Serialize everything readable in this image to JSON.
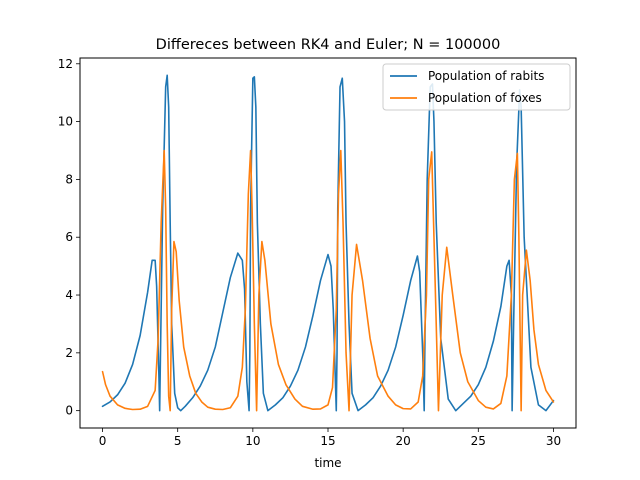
{
  "chart_data": {
    "type": "line",
    "title": "Differeces between RK4 and Euler; N = 100000",
    "xlabel": "time",
    "ylabel": "",
    "xlim": [
      -1.5,
      31.5
    ],
    "ylim": [
      -0.6,
      12.2
    ],
    "xticks": [
      0,
      5,
      10,
      15,
      20,
      25,
      30
    ],
    "yticks": [
      0,
      2,
      4,
      6,
      8,
      10,
      12
    ],
    "legend_position": "top-right",
    "series": [
      {
        "name": "Population of rabits",
        "color": "#1f77b4",
        "x": [
          0.0,
          0.5,
          1.0,
          1.5,
          2.0,
          2.5,
          3.0,
          3.3,
          3.5,
          3.6,
          3.75,
          3.8,
          3.85,
          4.0,
          4.2,
          4.3,
          4.4,
          4.5,
          4.6,
          4.8,
          5.0,
          5.2,
          5.5,
          6.0,
          6.5,
          7.0,
          7.5,
          8.0,
          8.5,
          9.0,
          9.3,
          9.45,
          9.6,
          9.75,
          9.8,
          9.85,
          10.0,
          10.1,
          10.2,
          10.3,
          10.5,
          10.7,
          11.0,
          11.5,
          12.0,
          12.5,
          13.0,
          13.5,
          14.0,
          14.5,
          15.0,
          15.2,
          15.35,
          15.55,
          15.6,
          15.65,
          15.8,
          15.95,
          16.1,
          16.2,
          16.4,
          16.6,
          17.0,
          17.5,
          18.0,
          18.5,
          19.0,
          19.5,
          20.0,
          20.5,
          20.95,
          21.1,
          21.3,
          21.4,
          21.45,
          21.6,
          21.8,
          21.95,
          22.05,
          22.2,
          22.5,
          23.0,
          23.5,
          24.0,
          24.5,
          25.0,
          25.5,
          26.0,
          26.5,
          26.9,
          27.05,
          27.2,
          27.25,
          27.35,
          27.55,
          27.75,
          27.85,
          28.05,
          28.5,
          29.0,
          29.5,
          30.0
        ],
        "y": [
          0.15,
          0.3,
          0.55,
          0.95,
          1.6,
          2.6,
          4.1,
          5.2,
          5.2,
          4.3,
          1.2,
          0.0,
          1.8,
          7.0,
          11.2,
          11.6,
          10.5,
          6.5,
          3.0,
          0.6,
          0.1,
          0.0,
          0.15,
          0.45,
          0.85,
          1.4,
          2.2,
          3.4,
          4.6,
          5.45,
          5.2,
          4.2,
          1.0,
          0.0,
          2.0,
          7.0,
          11.5,
          11.55,
          10.5,
          6.5,
          3.0,
          0.6,
          0.0,
          0.2,
          0.45,
          0.85,
          1.4,
          2.2,
          3.3,
          4.5,
          5.4,
          5.0,
          3.5,
          0.0,
          2.0,
          7.0,
          11.2,
          11.5,
          10.0,
          6.5,
          3.0,
          0.6,
          0.0,
          0.2,
          0.45,
          0.85,
          1.4,
          2.2,
          3.3,
          4.5,
          5.35,
          4.8,
          2.0,
          0.0,
          2.5,
          8.0,
          11.2,
          11.3,
          10.0,
          6.5,
          2.5,
          0.4,
          0.0,
          0.25,
          0.5,
          0.9,
          1.5,
          2.4,
          3.6,
          5.0,
          5.2,
          4.0,
          0.0,
          3.0,
          8.5,
          11.1,
          10.5,
          6.0,
          1.5,
          0.2,
          0.0,
          0.35
        ]
      },
      {
        "name": "Population of foxes",
        "color": "#ff7f0e",
        "x": [
          0.0,
          0.2,
          0.5,
          1.0,
          1.5,
          2.0,
          2.5,
          3.0,
          3.5,
          3.7,
          3.9,
          4.1,
          4.2,
          4.3,
          4.4,
          4.5,
          4.6,
          4.75,
          4.9,
          5.1,
          5.4,
          5.8,
          6.2,
          6.6,
          7.0,
          7.5,
          8.0,
          8.5,
          9.0,
          9.3,
          9.5,
          9.7,
          9.85,
          9.95,
          10.1,
          10.25,
          10.4,
          10.6,
          10.8,
          11.2,
          11.7,
          12.2,
          12.8,
          13.3,
          14.0,
          14.5,
          15.0,
          15.3,
          15.55,
          15.7,
          15.85,
          16.0,
          16.2,
          16.4,
          16.6,
          16.9,
          17.3,
          17.8,
          18.3,
          19.0,
          19.5,
          20.0,
          20.5,
          21.0,
          21.3,
          21.55,
          21.7,
          21.9,
          22.05,
          22.35,
          22.6,
          22.9,
          23.3,
          23.8,
          24.3,
          25.0,
          25.5,
          26.0,
          26.5,
          26.9,
          27.2,
          27.4,
          27.6,
          27.7,
          27.85,
          27.95,
          28.2,
          28.45,
          28.7,
          29.0,
          29.5,
          30.0
        ],
        "y": [
          1.35,
          0.9,
          0.5,
          0.2,
          0.08,
          0.04,
          0.05,
          0.15,
          0.7,
          2.5,
          6.5,
          9.0,
          7.0,
          3.0,
          0.5,
          0.0,
          3.5,
          5.85,
          5.5,
          3.8,
          2.2,
          1.2,
          0.6,
          0.3,
          0.12,
          0.05,
          0.04,
          0.1,
          0.5,
          1.5,
          3.5,
          7.5,
          9.0,
          7.0,
          3.0,
          0.0,
          4.0,
          5.85,
          5.2,
          3.0,
          1.6,
          0.9,
          0.4,
          0.15,
          0.05,
          0.06,
          0.2,
          0.8,
          3.5,
          7.5,
          9.0,
          6.5,
          2.0,
          0.0,
          4.0,
          5.75,
          4.5,
          2.5,
          1.2,
          0.5,
          0.2,
          0.07,
          0.06,
          0.3,
          1.2,
          4.0,
          8.0,
          8.95,
          6.0,
          0.0,
          4.0,
          5.65,
          4.0,
          2.0,
          1.0,
          0.35,
          0.12,
          0.06,
          0.25,
          1.2,
          4.0,
          8.0,
          8.9,
          6.0,
          0.0,
          4.0,
          5.55,
          4.5,
          2.8,
          1.6,
          0.7,
          0.3
        ]
      }
    ]
  }
}
